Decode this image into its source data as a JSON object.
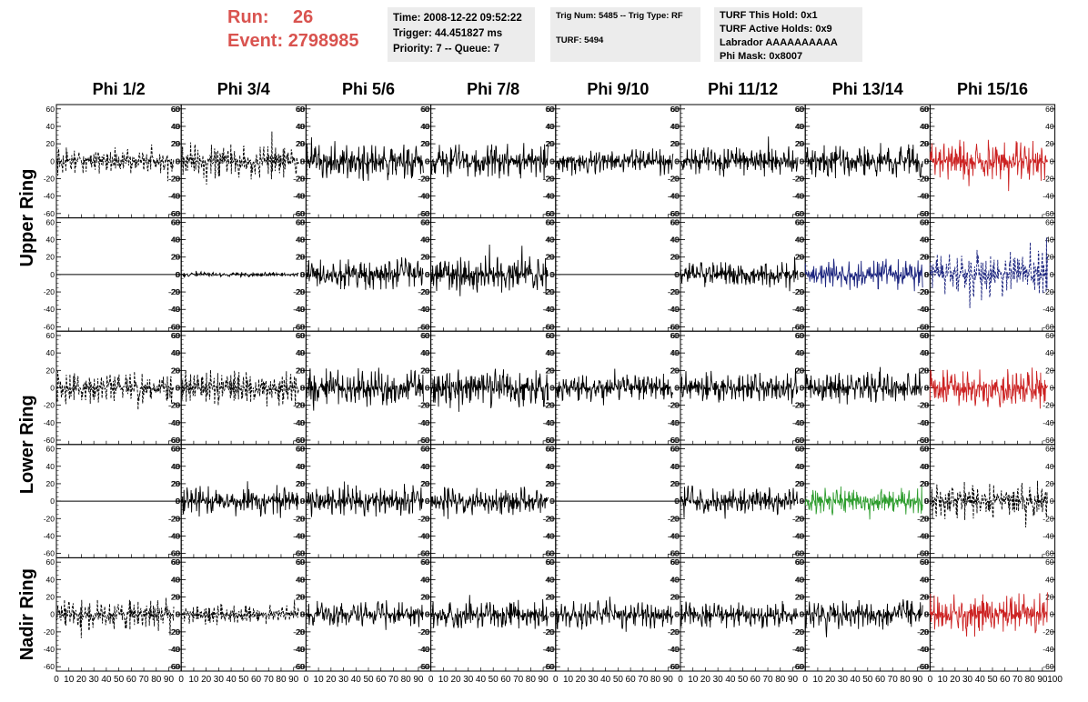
{
  "header": {
    "run_label": "Run:",
    "run_value": "26",
    "event_label": "Event:",
    "event_value": "2798985",
    "time_line": "Time: 2008-12-22 09:52:22",
    "trigger_line": "Trigger: 44.451827 ms",
    "priority_line": "Priority: 7 -- Queue: 7",
    "trig_line": "Trig Num: 5485 -- Trig Type: RF",
    "turf_line": "TURF: 5494",
    "turf_hold_line": "TURF This Hold: 0x1",
    "turf_active_line": "TURF Active Holds: 0x9",
    "labrador_line": "Labrador AAAAAAAAAA",
    "phi_mask_line": "Phi Mask: 0x8007"
  },
  "colors": {
    "run_text": "#d9534f",
    "info_box_bg": "#ececec",
    "trace_default": "#000000",
    "trace_red": "#cc2222",
    "trace_blue": "#1a237e",
    "trace_green": "#2e9d2e"
  },
  "chart_data": {
    "type": "line",
    "description_of_grid": "5 rows x 8 columns of waveform panels",
    "column_titles": [
      "Phi 1/2",
      "Phi 3/4",
      "Phi 5/6",
      "Phi 7/8",
      "Phi 9/10",
      "Phi 11/12",
      "Phi 13/14",
      "Phi 15/16"
    ],
    "row_labels": [
      {
        "text": "Upper Ring",
        "rows": [
          0,
          1
        ]
      },
      {
        "text": "Lower Ring",
        "rows": [
          2,
          3
        ]
      },
      {
        "text": "Nadir Ring",
        "rows": [
          4,
          4
        ]
      }
    ],
    "ylim": [
      -65,
      65
    ],
    "xlim": [
      0,
      100
    ],
    "yticks": [
      -60,
      -40,
      -20,
      0,
      20,
      40,
      60
    ],
    "xticks": [
      0,
      10,
      20,
      30,
      40,
      50,
      60,
      70,
      80,
      90,
      100
    ],
    "xtick_labels": [
      "0",
      "10",
      "20",
      "30",
      "40",
      "50",
      "60",
      "70",
      "80",
      "90",
      "100"
    ],
    "last_x_label": "100",
    "traces": [
      [
        {
          "style": "dash",
          "color": "trace_default",
          "amp": 16,
          "seed": 11
        },
        {
          "style": "dash",
          "color": "trace_default",
          "amp": 22,
          "seed": 12
        },
        {
          "style": "solid",
          "color": "trace_default",
          "amp": 24,
          "seed": 13
        },
        {
          "style": "solid",
          "color": "trace_default",
          "amp": 22,
          "seed": 14
        },
        {
          "style": "solid",
          "color": "trace_default",
          "amp": 16,
          "seed": 15
        },
        {
          "style": "solid",
          "color": "trace_default",
          "amp": 18,
          "seed": 16
        },
        {
          "style": "solid",
          "color": "trace_default",
          "amp": 22,
          "seed": 17
        },
        {
          "style": "solid",
          "color": "trace_red",
          "amp": 26,
          "seed": 18
        }
      ],
      [
        {
          "style": "flat",
          "color": "trace_default",
          "amp": 0,
          "seed": 21
        },
        {
          "style": "solid",
          "color": "trace_default",
          "amp": 3,
          "seed": 22
        },
        {
          "style": "solid",
          "color": "trace_default",
          "amp": 20,
          "seed": 23
        },
        {
          "style": "solid",
          "color": "trace_default",
          "amp": 24,
          "seed": 24
        },
        {
          "style": "flat",
          "color": "trace_default",
          "amp": 0,
          "seed": 25
        },
        {
          "style": "solid",
          "color": "trace_default",
          "amp": 16,
          "seed": 26
        },
        {
          "style": "solid",
          "color": "trace_blue",
          "amp": 20,
          "seed": 27
        },
        {
          "style": "dash",
          "color": "trace_blue",
          "amp": 28,
          "seed": 28
        }
      ],
      [
        {
          "style": "dash",
          "color": "trace_default",
          "amp": 20,
          "seed": 31
        },
        {
          "style": "dash",
          "color": "trace_default",
          "amp": 22,
          "seed": 32
        },
        {
          "style": "solid",
          "color": "trace_default",
          "amp": 24,
          "seed": 33
        },
        {
          "style": "solid",
          "color": "trace_default",
          "amp": 24,
          "seed": 34
        },
        {
          "style": "solid",
          "color": "trace_default",
          "amp": 17,
          "seed": 35
        },
        {
          "style": "solid",
          "color": "trace_default",
          "amp": 20,
          "seed": 36
        },
        {
          "style": "solid",
          "color": "trace_default",
          "amp": 20,
          "seed": 37
        },
        {
          "style": "solid",
          "color": "trace_red",
          "amp": 24,
          "seed": 38
        }
      ],
      [
        {
          "style": "flat",
          "color": "trace_default",
          "amp": 0,
          "seed": 41
        },
        {
          "style": "solid",
          "color": "trace_default",
          "amp": 20,
          "seed": 42
        },
        {
          "style": "solid",
          "color": "trace_default",
          "amp": 20,
          "seed": 43
        },
        {
          "style": "solid",
          "color": "trace_default",
          "amp": 18,
          "seed": 44
        },
        {
          "style": "flat",
          "color": "trace_default",
          "amp": 0,
          "seed": 45
        },
        {
          "style": "solid",
          "color": "trace_default",
          "amp": 18,
          "seed": 46
        },
        {
          "style": "solid",
          "color": "trace_green",
          "amp": 18,
          "seed": 47
        },
        {
          "style": "dash",
          "color": "trace_default",
          "amp": 22,
          "seed": 48
        }
      ],
      [
        {
          "style": "dash",
          "color": "trace_default",
          "amp": 20,
          "seed": 51
        },
        {
          "style": "dash",
          "color": "trace_default",
          "amp": 12,
          "seed": 52
        },
        {
          "style": "solid",
          "color": "trace_default",
          "amp": 16,
          "seed": 53
        },
        {
          "style": "solid",
          "color": "trace_default",
          "amp": 18,
          "seed": 54
        },
        {
          "style": "solid",
          "color": "trace_default",
          "amp": 18,
          "seed": 55
        },
        {
          "style": "solid",
          "color": "trace_default",
          "amp": 16,
          "seed": 56
        },
        {
          "style": "solid",
          "color": "trace_default",
          "amp": 18,
          "seed": 57
        },
        {
          "style": "solid",
          "color": "trace_red",
          "amp": 26,
          "seed": 58
        }
      ]
    ]
  }
}
